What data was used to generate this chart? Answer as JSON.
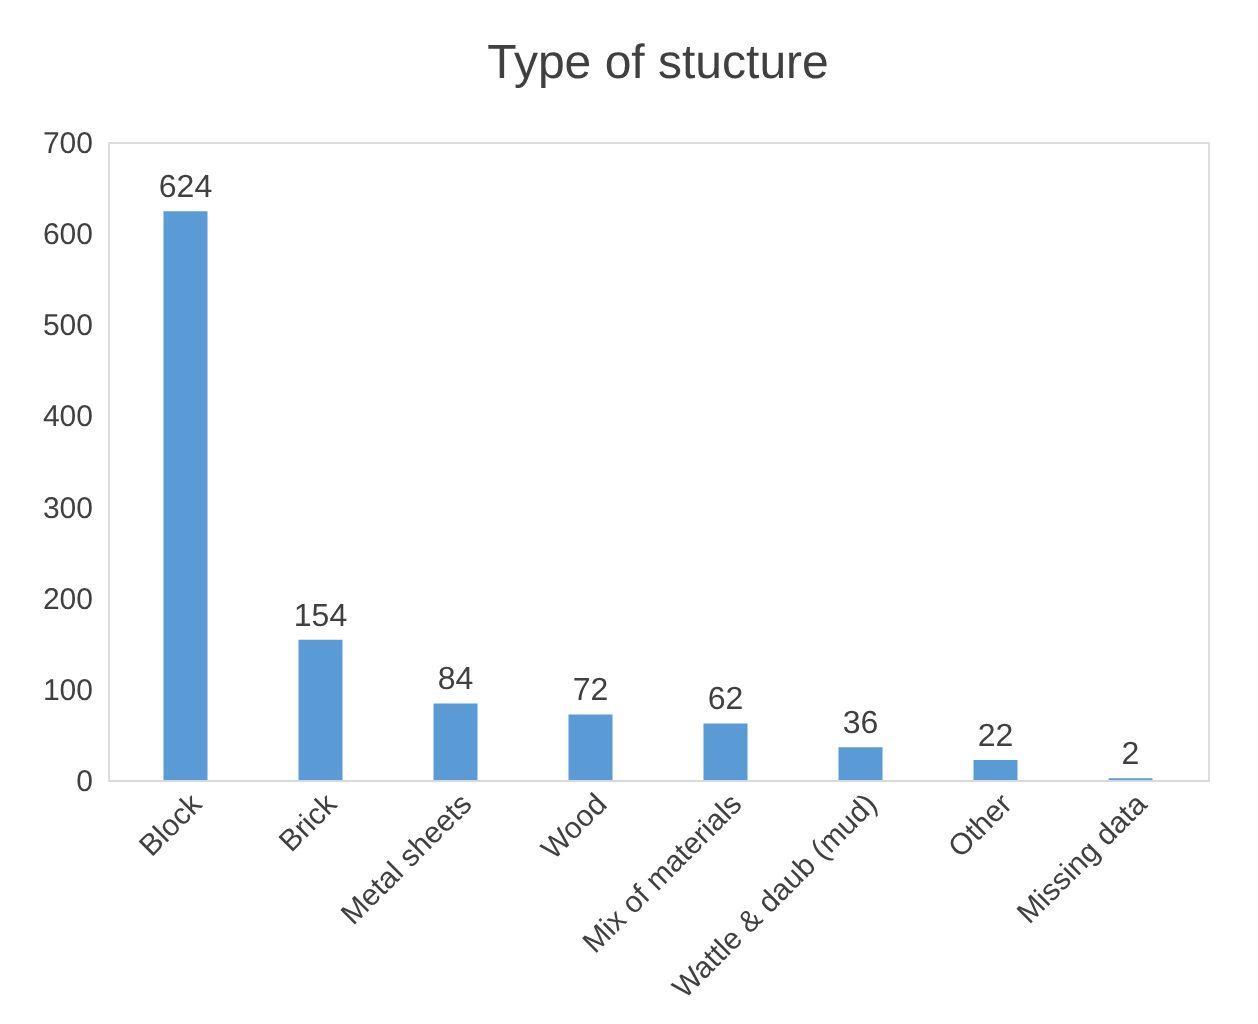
{
  "chart_data": {
    "type": "bar",
    "title": "Type of stucture",
    "categories": [
      "Block",
      "Brick",
      "Metal sheets",
      "Wood",
      "Mix of materials",
      "Wattle & daub (mud)",
      "Other",
      "Missing data"
    ],
    "values": [
      624,
      154,
      84,
      72,
      62,
      36,
      22,
      2
    ],
    "color": "#5b9bd5",
    "ylim": [
      0,
      700
    ],
    "yticks": [
      0,
      100,
      200,
      300,
      400,
      500,
      600,
      700
    ],
    "grid": false,
    "data_labels": true
  }
}
